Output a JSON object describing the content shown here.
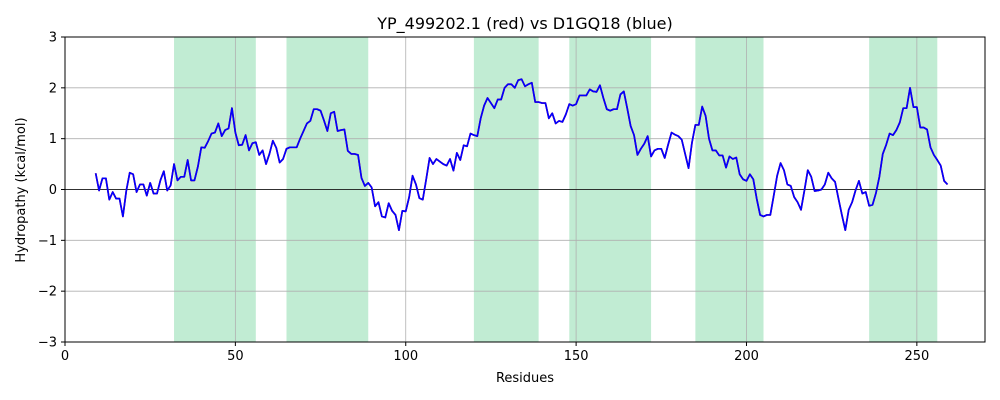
{
  "chart_data": {
    "type": "line",
    "title": "YP_499202.1 (red) vs D1GQ18 (blue)",
    "xlabel": "Residues",
    "ylabel": "Hydropathy (kcal/mol)",
    "xlim": [
      0,
      270
    ],
    "ylim": [
      -3,
      3
    ],
    "x_ticks": [
      0,
      50,
      100,
      150,
      200,
      250
    ],
    "y_ticks": [
      -3,
      -2,
      -1,
      0,
      1,
      2,
      3
    ],
    "grid": true,
    "zero_line": true,
    "colors": {
      "red": "#ff0000",
      "blue": "#0000ff",
      "highlight": "#c1ecd3",
      "grid": "#b0b0b0"
    },
    "highlight_regions": [
      [
        32,
        56
      ],
      [
        65,
        89
      ],
      [
        120,
        139
      ],
      [
        148,
        172
      ],
      [
        185,
        205
      ],
      [
        236,
        256
      ]
    ],
    "series": [
      {
        "color": "#ff0000",
        "x": [
          9,
          10,
          11,
          12,
          13,
          14,
          15,
          16,
          17,
          18,
          19,
          20,
          21,
          22,
          23,
          24,
          25,
          26,
          27,
          28,
          29,
          30,
          31,
          32,
          33,
          34,
          35,
          36,
          37,
          38,
          39,
          40,
          41,
          42,
          43,
          44,
          45,
          46,
          47,
          48,
          49,
          50,
          51,
          52,
          53,
          54,
          55,
          56,
          57,
          58,
          59,
          60,
          61,
          62,
          63,
          64,
          65,
          66,
          67,
          68,
          69,
          70,
          71,
          72,
          73,
          74,
          75,
          76,
          77,
          78,
          79,
          80,
          81,
          82,
          83,
          84,
          85,
          86,
          87,
          88,
          89,
          90,
          91,
          92,
          93,
          94,
          95,
          96,
          97,
          98,
          99,
          100,
          101,
          102,
          103,
          104,
          105,
          106,
          107,
          108,
          109,
          110,
          111,
          112,
          113,
          114,
          115,
          116,
          117,
          118,
          119,
          120,
          121,
          122,
          123,
          124,
          125,
          126,
          127,
          128,
          129,
          130,
          131,
          132,
          133,
          134,
          135,
          136,
          137,
          138,
          139,
          140,
          141,
          142,
          143,
          144,
          145,
          146,
          147,
          148,
          149,
          150,
          151,
          152,
          153,
          154,
          155,
          156,
          157,
          158,
          159,
          160,
          161,
          162,
          163,
          164,
          165,
          166,
          167,
          168,
          169,
          170,
          171,
          172,
          173,
          174,
          175,
          176,
          177,
          178,
          179,
          180,
          181,
          182,
          183,
          184,
          185,
          186,
          187,
          188,
          189,
          190,
          191,
          192,
          193,
          194,
          195,
          196,
          197,
          198,
          199,
          200,
          201,
          202,
          203,
          204,
          205,
          206,
          207,
          208,
          209,
          210,
          211,
          212,
          213,
          214,
          215,
          216,
          217,
          218,
          219,
          220,
          221,
          222,
          223,
          224,
          225,
          226,
          227,
          228,
          229,
          230,
          231,
          232,
          233,
          234,
          235,
          236,
          237,
          238,
          239,
          240,
          241,
          242,
          243,
          244,
          245,
          246,
          247,
          248,
          249,
          250,
          251,
          252,
          253,
          254,
          255,
          256,
          257,
          258,
          259
        ],
        "y": [
          0.32,
          -0.02,
          0.22,
          0.22,
          -0.2,
          -0.05,
          -0.18,
          -0.18,
          -0.53,
          -0.02,
          0.33,
          0.3,
          -0.05,
          0.1,
          0.1,
          -0.12,
          0.13,
          -0.08,
          -0.08,
          0.18,
          0.36,
          -0.02,
          0.08,
          0.5,
          0.18,
          0.25,
          0.25,
          0.58,
          0.18,
          0.18,
          0.45,
          0.83,
          0.82,
          0.95,
          1.1,
          1.12,
          1.3,
          1.05,
          1.17,
          1.2,
          1.6,
          1.12,
          0.87,
          0.88,
          1.07,
          0.77,
          0.91,
          0.93,
          0.68,
          0.77,
          0.5,
          0.7,
          0.96,
          0.82,
          0.53,
          0.6,
          0.8,
          0.83,
          0.83,
          0.83,
          1.0,
          1.15,
          1.3,
          1.35,
          1.58,
          1.58,
          1.55,
          1.36,
          1.15,
          1.5,
          1.53,
          1.15,
          1.17,
          1.18,
          0.76,
          0.7,
          0.7,
          0.68,
          0.23,
          0.07,
          0.13,
          0.04,
          -0.33,
          -0.25,
          -0.53,
          -0.55,
          -0.27,
          -0.42,
          -0.5,
          -0.8,
          -0.42,
          -0.43,
          -0.15,
          0.27,
          0.1,
          -0.17,
          -0.2,
          0.2,
          0.62,
          0.5,
          0.6,
          0.55,
          0.5,
          0.47,
          0.6,
          0.37,
          0.72,
          0.58,
          0.87,
          0.85,
          1.1,
          1.07,
          1.05,
          1.4,
          1.65,
          1.8,
          1.7,
          1.6,
          1.77,
          1.77,
          2.0,
          2.07,
          2.07,
          2.0,
          2.15,
          2.17,
          2.03,
          2.07,
          2.1,
          1.72,
          1.72,
          1.7,
          1.7,
          1.4,
          1.5,
          1.3,
          1.35,
          1.33,
          1.48,
          1.68,
          1.65,
          1.68,
          1.85,
          1.85,
          1.85,
          1.97,
          1.93,
          1.92,
          2.05,
          1.8,
          1.58,
          1.55,
          1.58,
          1.58,
          1.87,
          1.93,
          1.6,
          1.25,
          1.07,
          0.68,
          0.8,
          0.9,
          1.05,
          0.65,
          0.77,
          0.8,
          0.8,
          0.62,
          0.88,
          1.12,
          1.08,
          1.05,
          0.98,
          0.7,
          0.42,
          0.92,
          1.27,
          1.27,
          1.63,
          1.45,
          1.0,
          0.77,
          0.77,
          0.67,
          0.67,
          0.43,
          0.65,
          0.6,
          0.63,
          0.3,
          0.2,
          0.17,
          0.3,
          0.2,
          -0.18,
          -0.5,
          -0.53,
          -0.5,
          -0.5,
          -0.12,
          0.27,
          0.52,
          0.38,
          0.1,
          0.07,
          -0.15,
          -0.25,
          -0.4,
          -0.02,
          0.38,
          0.25,
          -0.03,
          -0.02,
          0.0,
          0.1,
          0.33,
          0.22,
          0.15,
          -0.18,
          -0.5,
          -0.8,
          -0.4,
          -0.25,
          -0.02,
          0.17,
          -0.08,
          -0.05,
          -0.32,
          -0.3,
          -0.07,
          0.25,
          0.7,
          0.88,
          1.1,
          1.07,
          1.17,
          1.32,
          1.6,
          1.6,
          2.0,
          1.62,
          1.62,
          1.22,
          1.22,
          1.18,
          0.83,
          0.68,
          0.58,
          0.47,
          0.17,
          0.1
        ]
      },
      {
        "color": "#0000ff",
        "x": [
          9,
          10,
          11,
          12,
          13,
          14,
          15,
          16,
          17,
          18,
          19,
          20,
          21,
          22,
          23,
          24,
          25,
          26,
          27,
          28,
          29,
          30,
          31,
          32,
          33,
          34,
          35,
          36,
          37,
          38,
          39,
          40,
          41,
          42,
          43,
          44,
          45,
          46,
          47,
          48,
          49,
          50,
          51,
          52,
          53,
          54,
          55,
          56,
          57,
          58,
          59,
          60,
          61,
          62,
          63,
          64,
          65,
          66,
          67,
          68,
          69,
          70,
          71,
          72,
          73,
          74,
          75,
          76,
          77,
          78,
          79,
          80,
          81,
          82,
          83,
          84,
          85,
          86,
          87,
          88,
          89,
          90,
          91,
          92,
          93,
          94,
          95,
          96,
          97,
          98,
          99,
          100,
          101,
          102,
          103,
          104,
          105,
          106,
          107,
          108,
          109,
          110,
          111,
          112,
          113,
          114,
          115,
          116,
          117,
          118,
          119,
          120,
          121,
          122,
          123,
          124,
          125,
          126,
          127,
          128,
          129,
          130,
          131,
          132,
          133,
          134,
          135,
          136,
          137,
          138,
          139,
          140,
          141,
          142,
          143,
          144,
          145,
          146,
          147,
          148,
          149,
          150,
          151,
          152,
          153,
          154,
          155,
          156,
          157,
          158,
          159,
          160,
          161,
          162,
          163,
          164,
          165,
          166,
          167,
          168,
          169,
          170,
          171,
          172,
          173,
          174,
          175,
          176,
          177,
          178,
          179,
          180,
          181,
          182,
          183,
          184,
          185,
          186,
          187,
          188,
          189,
          190,
          191,
          192,
          193,
          194,
          195,
          196,
          197,
          198,
          199,
          200,
          201,
          202,
          203,
          204,
          205,
          206,
          207,
          208,
          209,
          210,
          211,
          212,
          213,
          214,
          215,
          216,
          217,
          218,
          219,
          220,
          221,
          222,
          223,
          224,
          225,
          226,
          227,
          228,
          229,
          230,
          231,
          232,
          233,
          234,
          235,
          236,
          237,
          238,
          239,
          240,
          241,
          242,
          243,
          244,
          245,
          246,
          247,
          248,
          249,
          250,
          251,
          252,
          253,
          254,
          255,
          256,
          257,
          258,
          259
        ],
        "y": [
          0.32,
          -0.02,
          0.22,
          0.22,
          -0.2,
          -0.05,
          -0.18,
          -0.18,
          -0.53,
          -0.02,
          0.33,
          0.3,
          -0.05,
          0.1,
          0.1,
          -0.12,
          0.13,
          -0.08,
          -0.08,
          0.18,
          0.36,
          -0.02,
          0.08,
          0.5,
          0.18,
          0.25,
          0.25,
          0.58,
          0.18,
          0.18,
          0.45,
          0.83,
          0.82,
          0.95,
          1.1,
          1.12,
          1.3,
          1.05,
          1.17,
          1.2,
          1.6,
          1.12,
          0.87,
          0.88,
          1.07,
          0.77,
          0.91,
          0.93,
          0.68,
          0.77,
          0.5,
          0.7,
          0.96,
          0.82,
          0.53,
          0.6,
          0.8,
          0.83,
          0.83,
          0.83,
          1.0,
          1.15,
          1.3,
          1.35,
          1.58,
          1.58,
          1.55,
          1.36,
          1.15,
          1.5,
          1.53,
          1.15,
          1.17,
          1.18,
          0.76,
          0.7,
          0.7,
          0.68,
          0.23,
          0.07,
          0.13,
          0.04,
          -0.33,
          -0.25,
          -0.53,
          -0.55,
          -0.27,
          -0.42,
          -0.5,
          -0.8,
          -0.42,
          -0.43,
          -0.15,
          0.27,
          0.1,
          -0.17,
          -0.2,
          0.2,
          0.62,
          0.5,
          0.6,
          0.55,
          0.5,
          0.47,
          0.6,
          0.37,
          0.72,
          0.58,
          0.87,
          0.85,
          1.1,
          1.07,
          1.05,
          1.4,
          1.65,
          1.8,
          1.7,
          1.6,
          1.77,
          1.77,
          2.0,
          2.07,
          2.07,
          2.0,
          2.15,
          2.17,
          2.03,
          2.07,
          2.1,
          1.72,
          1.72,
          1.7,
          1.7,
          1.4,
          1.5,
          1.3,
          1.35,
          1.33,
          1.48,
          1.68,
          1.65,
          1.68,
          1.85,
          1.85,
          1.85,
          1.97,
          1.93,
          1.92,
          2.05,
          1.8,
          1.58,
          1.55,
          1.58,
          1.58,
          1.87,
          1.93,
          1.6,
          1.25,
          1.07,
          0.68,
          0.8,
          0.9,
          1.05,
          0.65,
          0.77,
          0.8,
          0.8,
          0.62,
          0.88,
          1.12,
          1.08,
          1.05,
          0.98,
          0.7,
          0.42,
          0.92,
          1.27,
          1.27,
          1.63,
          1.45,
          1.0,
          0.77,
          0.77,
          0.67,
          0.67,
          0.43,
          0.65,
          0.6,
          0.63,
          0.3,
          0.2,
          0.17,
          0.3,
          0.2,
          -0.18,
          -0.5,
          -0.53,
          -0.5,
          -0.5,
          -0.12,
          0.27,
          0.52,
          0.38,
          0.1,
          0.07,
          -0.15,
          -0.25,
          -0.4,
          -0.02,
          0.38,
          0.25,
          -0.03,
          -0.02,
          0.0,
          0.1,
          0.33,
          0.22,
          0.15,
          -0.18,
          -0.5,
          -0.8,
          -0.4,
          -0.25,
          -0.02,
          0.17,
          -0.08,
          -0.05,
          -0.32,
          -0.3,
          -0.07,
          0.25,
          0.7,
          0.88,
          1.1,
          1.07,
          1.17,
          1.32,
          1.6,
          1.6,
          2.0,
          1.62,
          1.62,
          1.22,
          1.22,
          1.18,
          0.83,
          0.68,
          0.58,
          0.47,
          0.17,
          0.1
        ]
      }
    ]
  }
}
